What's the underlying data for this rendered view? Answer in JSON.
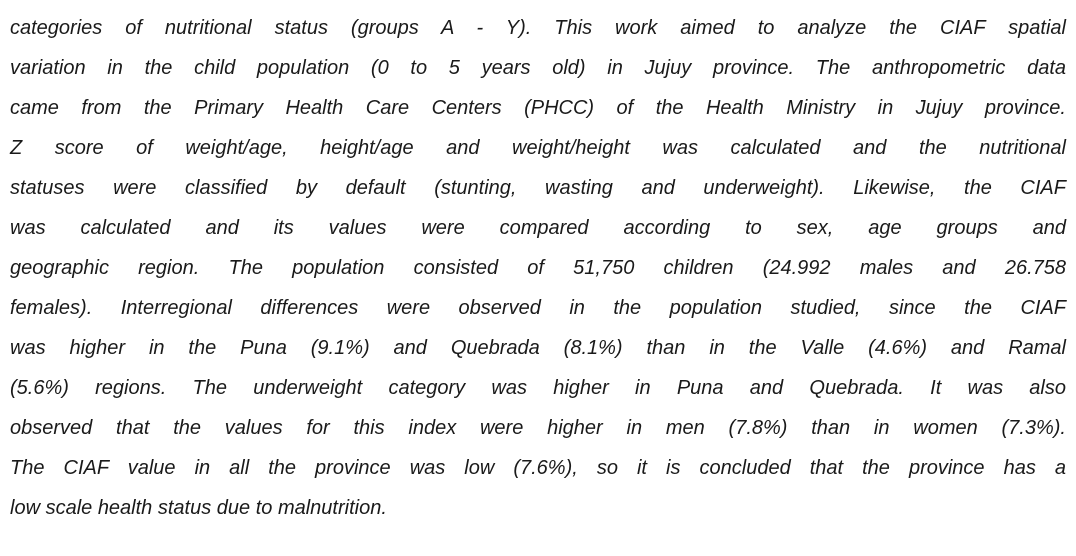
{
  "paragraph": {
    "lines": [
      "categories of nutritional status (groups A - Y). This work aimed to analyze the CIAF spatial",
      "variation in the child population (0 to 5 years old) in Jujuy province. The anthropometric data",
      "came from the Primary Health Care Centers (PHCC) of the Health Ministry in Jujuy province.",
      "Z score of weight/age, height/age and weight/height was calculated and the nutritional",
      "statuses were classified by default (stunting, wasting and underweight). Likewise, the CIAF",
      "was calculated and its values were compared according to sex, age groups and",
      "geographic region. The population consisted of 51,750 children (24.992 males and 26.758",
      "females). Interregional differences were observed in the population studied, since the CIAF",
      "was higher in the Puna (9.1%) and Quebrada (8.1%) than in the Valle (4.6%) and Ramal",
      "(5.6%) regions. The underweight category was higher in Puna and Quebrada. It was also",
      "observed that the values for this index were higher in men (7.8%) than in women (7.3%).",
      "The CIAF value in all the province was low (7.6%), so it is concluded that the province has a",
      "low scale health status due to malnutrition."
    ]
  }
}
